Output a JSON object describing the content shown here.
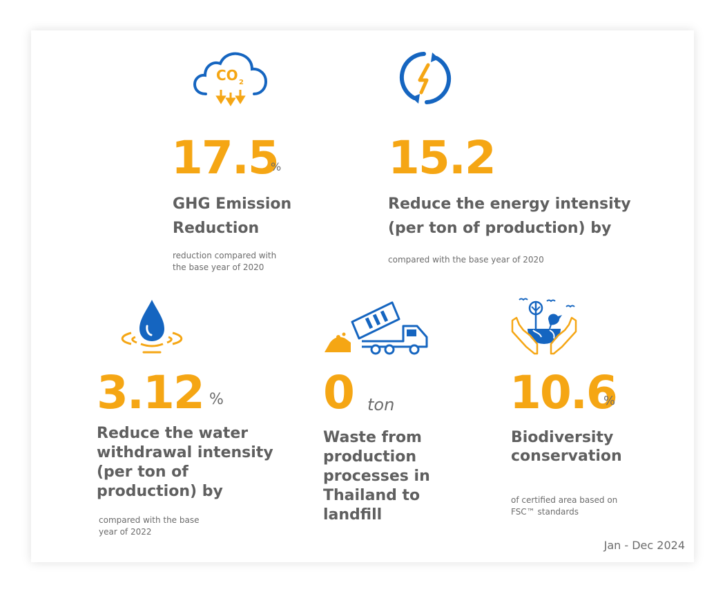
{
  "colors": {
    "accent": "#f5a614",
    "icon_blue": "#1565c0",
    "text": "#5f5f5f"
  },
  "co2_label": "CO",
  "co2_sub": "2",
  "metrics": [
    {
      "icon": "co2-cloud-icon",
      "value": "17.5",
      "unit": "%",
      "title": [
        "GHG Emission",
        "Reduction"
      ],
      "note": [
        "reduction compared with",
        "the base year of 2020"
      ]
    },
    {
      "icon": "energy-cycle-icon",
      "value": "15.2",
      "unit": "",
      "title": [
        "Reduce the energy intensity",
        "(per ton of production) by"
      ],
      "note": [
        "compared with the base year of 2020"
      ]
    },
    {
      "icon": "water-drop-icon",
      "value": "3.12",
      "unit": "%",
      "title": [
        "Reduce the water",
        "withdrawal intensity",
        "(per ton of",
        "production) by"
      ],
      "note": [
        "compared with the base",
        "year of 2022"
      ]
    },
    {
      "icon": "dump-truck-icon",
      "value": "0",
      "unit": "ton",
      "title": [
        "Waste from",
        "production",
        "processes in",
        "Thailand to",
        "landfill"
      ],
      "note": []
    },
    {
      "icon": "biodiversity-hands-icon",
      "value": "10.6",
      "unit": "%",
      "title": [
        "Biodiversity",
        "conservation"
      ],
      "note": [
        "of certified area based on",
        "FSC™ standards"
      ]
    }
  ],
  "period": "Jan - Dec 2024"
}
